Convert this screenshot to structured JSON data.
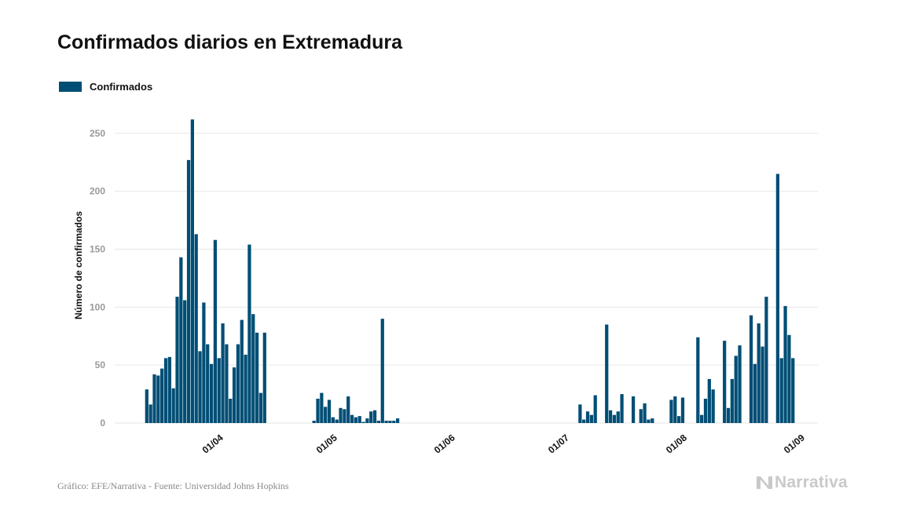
{
  "title": "Confirmados diarios en Extremadura",
  "footer": {
    "source": "Gráfico: EFE/Narrativa - Fuente: Universidad Johns Hopkins",
    "brand": "Narrativa",
    "brand_icon": "narrativa-logo-icon"
  },
  "colors": {
    "bars": "#014e75",
    "grid": "#e6e6e6",
    "y_tick_text": "#999999",
    "brand": "#c9c9c9"
  },
  "chart_data": {
    "type": "bar",
    "title": "Confirmados diarios en Extremadura",
    "xlabel": "",
    "ylabel": "Número de confirmados",
    "ylim": [
      0,
      275
    ],
    "y_ticks": [
      0,
      50,
      100,
      150,
      200,
      250
    ],
    "x_start": "2020-03-06",
    "x_end": "2020-09-07",
    "x_ticks": [
      {
        "label": "01/04",
        "date": "2020-04-01"
      },
      {
        "label": "01/05",
        "date": "2020-05-01"
      },
      {
        "label": "01/06",
        "date": "2020-06-01"
      },
      {
        "label": "01/07",
        "date": "2020-07-01"
      },
      {
        "label": "01/08",
        "date": "2020-08-01"
      },
      {
        "label": "01/09",
        "date": "2020-09-01"
      }
    ],
    "grid": true,
    "legend": {
      "position": "top-left"
    },
    "series": [
      {
        "name": "Confirmados",
        "points": [
          [
            "2020-03-14",
            29
          ],
          [
            "2020-03-15",
            16
          ],
          [
            "2020-03-16",
            42
          ],
          [
            "2020-03-17",
            41
          ],
          [
            "2020-03-18",
            47
          ],
          [
            "2020-03-19",
            56
          ],
          [
            "2020-03-20",
            57
          ],
          [
            "2020-03-21",
            30
          ],
          [
            "2020-03-22",
            109
          ],
          [
            "2020-03-23",
            143
          ],
          [
            "2020-03-24",
            106
          ],
          [
            "2020-03-25",
            227
          ],
          [
            "2020-03-26",
            262
          ],
          [
            "2020-03-27",
            163
          ],
          [
            "2020-03-28",
            62
          ],
          [
            "2020-03-29",
            104
          ],
          [
            "2020-03-30",
            68
          ],
          [
            "2020-03-31",
            51
          ],
          [
            "2020-04-01",
            158
          ],
          [
            "2020-04-02",
            56
          ],
          [
            "2020-04-03",
            86
          ],
          [
            "2020-04-04",
            68
          ],
          [
            "2020-04-05",
            21
          ],
          [
            "2020-04-06",
            48
          ],
          [
            "2020-04-07",
            68
          ],
          [
            "2020-04-08",
            89
          ],
          [
            "2020-04-09",
            59
          ],
          [
            "2020-04-10",
            154
          ],
          [
            "2020-04-11",
            94
          ],
          [
            "2020-04-12",
            78
          ],
          [
            "2020-04-13",
            26
          ],
          [
            "2020-04-14",
            78
          ],
          [
            "2020-04-27",
            2
          ],
          [
            "2020-04-28",
            21
          ],
          [
            "2020-04-29",
            26
          ],
          [
            "2020-04-30",
            14
          ],
          [
            "2020-05-01",
            20
          ],
          [
            "2020-05-02",
            5
          ],
          [
            "2020-05-03",
            3
          ],
          [
            "2020-05-04",
            13
          ],
          [
            "2020-05-05",
            12
          ],
          [
            "2020-05-06",
            23
          ],
          [
            "2020-05-07",
            7
          ],
          [
            "2020-05-08",
            5
          ],
          [
            "2020-05-09",
            6
          ],
          [
            "2020-05-10",
            1
          ],
          [
            "2020-05-11",
            4
          ],
          [
            "2020-05-12",
            10
          ],
          [
            "2020-05-13",
            11
          ],
          [
            "2020-05-14",
            2
          ],
          [
            "2020-05-15",
            90
          ],
          [
            "2020-05-16",
            2
          ],
          [
            "2020-05-17",
            2
          ],
          [
            "2020-05-18",
            2
          ],
          [
            "2020-05-19",
            4
          ],
          [
            "2020-07-06",
            16
          ],
          [
            "2020-07-07",
            3
          ],
          [
            "2020-07-08",
            10
          ],
          [
            "2020-07-09",
            7
          ],
          [
            "2020-07-10",
            24
          ],
          [
            "2020-07-13",
            85
          ],
          [
            "2020-07-14",
            11
          ],
          [
            "2020-07-15",
            7
          ],
          [
            "2020-07-16",
            10
          ],
          [
            "2020-07-17",
            25
          ],
          [
            "2020-07-20",
            23
          ],
          [
            "2020-07-22",
            12
          ],
          [
            "2020-07-23",
            17
          ],
          [
            "2020-07-24",
            3
          ],
          [
            "2020-07-25",
            4
          ],
          [
            "2020-07-30",
            20
          ],
          [
            "2020-07-31",
            23
          ],
          [
            "2020-08-01",
            6
          ],
          [
            "2020-08-02",
            22
          ],
          [
            "2020-08-06",
            74
          ],
          [
            "2020-08-07",
            7
          ],
          [
            "2020-08-08",
            21
          ],
          [
            "2020-08-09",
            38
          ],
          [
            "2020-08-10",
            29
          ],
          [
            "2020-08-13",
            71
          ],
          [
            "2020-08-14",
            13
          ],
          [
            "2020-08-15",
            38
          ],
          [
            "2020-08-16",
            58
          ],
          [
            "2020-08-17",
            67
          ],
          [
            "2020-08-20",
            93
          ],
          [
            "2020-08-21",
            51
          ],
          [
            "2020-08-22",
            86
          ],
          [
            "2020-08-23",
            66
          ],
          [
            "2020-08-24",
            109
          ],
          [
            "2020-08-27",
            215
          ],
          [
            "2020-08-28",
            56
          ],
          [
            "2020-08-29",
            101
          ],
          [
            "2020-08-30",
            76
          ],
          [
            "2020-08-31",
            56
          ]
        ]
      }
    ]
  }
}
